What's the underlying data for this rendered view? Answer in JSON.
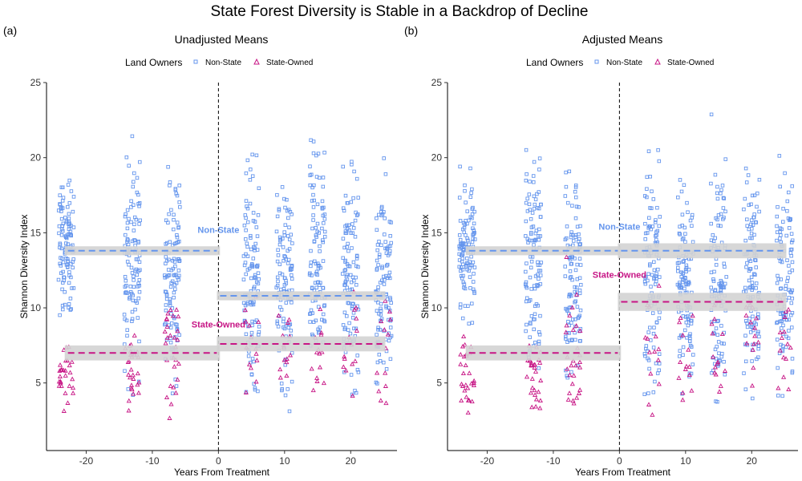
{
  "title": "State Forest Diversity is Stable in a Backdrop of Decline",
  "colors": {
    "non_state": "#6495ED",
    "state_owned": "#C71585",
    "ribbon": "#D3D3D3"
  },
  "legend": {
    "title": "Land Owners",
    "non_state": "Non-State",
    "state_owned": "State-Owned"
  },
  "chart_data": [
    {
      "tag": "(a)",
      "type": "scatter",
      "title": "Unadjusted Means",
      "xlabel": "Years From Treatment",
      "ylabel": "Shannon Diversity Index",
      "xlim": [
        -26,
        27
      ],
      "ylim": [
        0.5,
        25
      ],
      "x_ticks": [
        -20,
        -10,
        0,
        10,
        20
      ],
      "y_ticks": [
        5,
        10,
        15,
        20,
        25
      ],
      "grid": false,
      "treatment_line_x": 0,
      "clusters_x": [
        -23,
        -13,
        -7,
        5,
        10,
        15,
        20,
        25
      ],
      "non_state_ranges": [
        [
          8,
          20
        ],
        [
          2.5,
          23.5
        ],
        [
          3,
          21.5
        ],
        [
          1.5,
          22.5
        ],
        [
          1.5,
          21
        ],
        [
          1.5,
          24
        ],
        [
          1.5,
          22.5
        ],
        [
          1.5,
          21.5
        ]
      ],
      "state_owned_ranges": [
        [
          2.5,
          8.5
        ],
        [
          2.5,
          9
        ],
        [
          2,
          13.5
        ],
        [
          1.5,
          13
        ],
        [
          3,
          11
        ],
        [
          3,
          10.5
        ],
        [
          3,
          12
        ],
        [
          2,
          12
        ]
      ],
      "means": [
        {
          "series": "Non-State",
          "x_start": -23,
          "x_end": 0,
          "y": 13.8,
          "ci": [
            13.5,
            14.1
          ]
        },
        {
          "series": "Non-State",
          "x_start": 0,
          "x_end": 25,
          "y": 10.8,
          "ci": [
            10.5,
            11.1
          ]
        },
        {
          "series": "State-Owned",
          "x_start": -23,
          "x_end": 0,
          "y": 7.0,
          "ci": [
            6.5,
            7.5
          ]
        },
        {
          "series": "State-Owned",
          "x_start": 0,
          "x_end": 25,
          "y": 7.6,
          "ci": [
            7.1,
            8.1
          ]
        }
      ],
      "annotations": [
        {
          "text": "Non-State",
          "x": 0,
          "y": 15.0,
          "series": "Non-State"
        },
        {
          "text": "State-Owned",
          "x": 0,
          "y": 8.7,
          "series": "State-Owned"
        }
      ]
    },
    {
      "tag": "(b)",
      "type": "scatter",
      "title": "Adjusted Means",
      "xlabel": "Years From Treatment",
      "ylabel": "Shannon Diversity Index",
      "xlim": [
        -26,
        27
      ],
      "ylim": [
        0.5,
        25
      ],
      "x_ticks": [
        -20,
        -10,
        0,
        10,
        20
      ],
      "y_ticks": [
        5,
        10,
        15,
        20,
        25
      ],
      "grid": false,
      "treatment_line_x": 0,
      "clusters_x": [
        -23,
        -13,
        -7,
        5,
        10,
        15,
        20,
        25
      ],
      "non_state_ranges": [
        [
          8,
          20
        ],
        [
          2.5,
          23.5
        ],
        [
          3,
          21.5
        ],
        [
          1.5,
          22.5
        ],
        [
          1.5,
          21
        ],
        [
          1.5,
          24
        ],
        [
          1.5,
          22.5
        ],
        [
          1.5,
          21.5
        ]
      ],
      "state_owned_ranges": [
        [
          2.5,
          8.5
        ],
        [
          2.5,
          9
        ],
        [
          2,
          13.5
        ],
        [
          1.5,
          13
        ],
        [
          3,
          11
        ],
        [
          3,
          10.5
        ],
        [
          3,
          12
        ],
        [
          2,
          12
        ]
      ],
      "means": [
        {
          "series": "Non-State",
          "x_start": -23,
          "x_end": 0,
          "y": 13.8,
          "ci": [
            13.5,
            14.1
          ]
        },
        {
          "series": "Non-State",
          "x_start": 0,
          "x_end": 25,
          "y": 13.8,
          "ci": [
            13.3,
            14.3
          ]
        },
        {
          "series": "State-Owned",
          "x_start": -23,
          "x_end": 0,
          "y": 7.0,
          "ci": [
            6.5,
            7.5
          ]
        },
        {
          "series": "State-Owned",
          "x_start": 0,
          "x_end": 25,
          "y": 10.4,
          "ci": [
            9.8,
            11.0
          ]
        }
      ],
      "annotations": [
        {
          "text": "Non-State",
          "x": 0,
          "y": 15.2,
          "series": "Non-State"
        },
        {
          "text": "State-Owned",
          "x": 0,
          "y": 12.0,
          "series": "State-Owned"
        }
      ]
    }
  ]
}
